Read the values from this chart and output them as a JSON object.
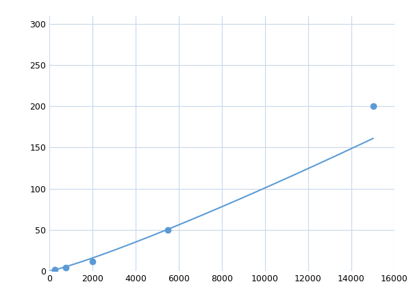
{
  "x": [
    250,
    750,
    2000,
    5500,
    15000
  ],
  "y": [
    2,
    4,
    12,
    50,
    200
  ],
  "line_color": "#5b9bd5",
  "marker_color": "#5b9bd5",
  "marker_size": 6,
  "marker_edge_color": "#5b9bd5",
  "line_width": 1.5,
  "xlim": [
    0,
    16000
  ],
  "ylim": [
    0,
    310
  ],
  "xticks": [
    0,
    2000,
    4000,
    6000,
    8000,
    10000,
    12000,
    14000,
    16000
  ],
  "yticks": [
    0,
    50,
    100,
    150,
    200,
    250,
    300
  ],
  "grid_color": "#c8d8e8",
  "background_color": "#ffffff",
  "figsize": [
    6.0,
    4.5
  ],
  "dpi": 100
}
